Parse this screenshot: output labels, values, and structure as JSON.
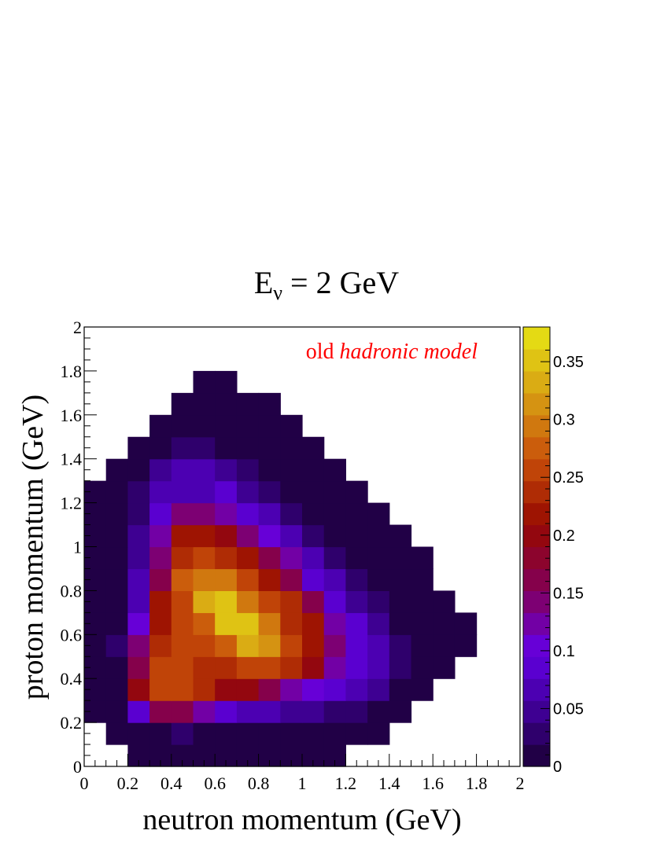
{
  "chart_data": {
    "type": "heatmap",
    "title": {
      "main": "E",
      "sub": "ν",
      "rest": " = 2 GeV"
    },
    "xlabel": "neutron momentum (GeV)",
    "ylabel": "proton momentum (GeV)",
    "annotation": {
      "plain": "old ",
      "italic": "hadronic model",
      "color": "#ff0000"
    },
    "xlim": [
      0,
      2
    ],
    "ylim": [
      0,
      2
    ],
    "bin_width": 0.1,
    "x_tick_labels": [
      "0",
      "0.2",
      "0.4",
      "0.6",
      "0.8",
      "1",
      "1.2",
      "1.4",
      "1.6",
      "1.8",
      "2"
    ],
    "y_tick_labels": [
      "0",
      "0.2",
      "0.4",
      "0.6",
      "0.8",
      "1",
      "1.2",
      "1.4",
      "1.6",
      "1.8",
      "2"
    ],
    "colorbar": {
      "range": [
        0,
        0.38
      ],
      "tick_labels": [
        "0",
        "0.05",
        "0.1",
        "0.15",
        "0.2",
        "0.25",
        "0.3",
        "0.35"
      ],
      "palette": "dark-purple-to-yellow"
    },
    "bins": [
      [
        0.2,
        0,
        0.005
      ],
      [
        0.3,
        0,
        0.005
      ],
      [
        0.4,
        0,
        0.005
      ],
      [
        0.5,
        0,
        0.005
      ],
      [
        0.6,
        0,
        0.005
      ],
      [
        0.7,
        0,
        0.005
      ],
      [
        0.8,
        0,
        0.005
      ],
      [
        0.9,
        0,
        0.005
      ],
      [
        1.0,
        0,
        0.005
      ],
      [
        1.1,
        0,
        0.005
      ],
      [
        0.1,
        0.1,
        0.005
      ],
      [
        0.2,
        0.1,
        0.005
      ],
      [
        0.3,
        0.1,
        0.005
      ],
      [
        0.4,
        0.1,
        0.03
      ],
      [
        0.5,
        0.1,
        0.005
      ],
      [
        0.6,
        0.1,
        0.005
      ],
      [
        0.7,
        0.1,
        0.005
      ],
      [
        0.8,
        0.1,
        0.005
      ],
      [
        0.9,
        0.1,
        0.005
      ],
      [
        1.0,
        0.1,
        0.005
      ],
      [
        1.1,
        0.1,
        0.005
      ],
      [
        1.2,
        0.1,
        0.005
      ],
      [
        1.3,
        0.1,
        0.005
      ],
      [
        0.0,
        0.2,
        0.005
      ],
      [
        0.1,
        0.2,
        0.005
      ],
      [
        0.2,
        0.2,
        0.085
      ],
      [
        0.3,
        0.2,
        0.16
      ],
      [
        0.4,
        0.2,
        0.16
      ],
      [
        0.5,
        0.2,
        0.12
      ],
      [
        0.6,
        0.2,
        0.08
      ],
      [
        0.7,
        0.2,
        0.06
      ],
      [
        0.8,
        0.2,
        0.06
      ],
      [
        0.9,
        0.2,
        0.05
      ],
      [
        1.0,
        0.2,
        0.05
      ],
      [
        1.1,
        0.2,
        0.03
      ],
      [
        1.2,
        0.2,
        0.03
      ],
      [
        1.3,
        0.2,
        0.005
      ],
      [
        1.4,
        0.2,
        0.005
      ],
      [
        0.0,
        0.3,
        0.005
      ],
      [
        0.1,
        0.3,
        0.005
      ],
      [
        0.2,
        0.3,
        0.19
      ],
      [
        0.3,
        0.3,
        0.26
      ],
      [
        0.4,
        0.3,
        0.26
      ],
      [
        0.5,
        0.3,
        0.23
      ],
      [
        0.6,
        0.3,
        0.2
      ],
      [
        0.7,
        0.3,
        0.2
      ],
      [
        0.8,
        0.3,
        0.16
      ],
      [
        0.9,
        0.3,
        0.13
      ],
      [
        1.0,
        0.3,
        0.11
      ],
      [
        1.1,
        0.3,
        0.085
      ],
      [
        1.2,
        0.3,
        0.07
      ],
      [
        1.3,
        0.3,
        0.05
      ],
      [
        1.4,
        0.3,
        0.005
      ],
      [
        1.5,
        0.3,
        0.005
      ],
      [
        0.0,
        0.4,
        0.005
      ],
      [
        0.1,
        0.4,
        0.005
      ],
      [
        0.2,
        0.4,
        0.17
      ],
      [
        0.3,
        0.4,
        0.26
      ],
      [
        0.4,
        0.4,
        0.26
      ],
      [
        0.5,
        0.4,
        0.24
      ],
      [
        0.6,
        0.4,
        0.24
      ],
      [
        0.7,
        0.4,
        0.26
      ],
      [
        0.8,
        0.4,
        0.26
      ],
      [
        0.9,
        0.4,
        0.23
      ],
      [
        1.0,
        0.4,
        0.2
      ],
      [
        1.1,
        0.4,
        0.13
      ],
      [
        1.2,
        0.4,
        0.08
      ],
      [
        1.3,
        0.4,
        0.06
      ],
      [
        1.4,
        0.4,
        0.02
      ],
      [
        1.5,
        0.4,
        0.005
      ],
      [
        1.6,
        0.4,
        0.005
      ],
      [
        0.0,
        0.5,
        0.005
      ],
      [
        0.1,
        0.5,
        0.02
      ],
      [
        0.2,
        0.5,
        0.14
      ],
      [
        0.3,
        0.5,
        0.24
      ],
      [
        0.4,
        0.5,
        0.25
      ],
      [
        0.5,
        0.5,
        0.25
      ],
      [
        0.6,
        0.5,
        0.28
      ],
      [
        0.7,
        0.5,
        0.34
      ],
      [
        0.8,
        0.5,
        0.31
      ],
      [
        0.9,
        0.5,
        0.25
      ],
      [
        1.0,
        0.5,
        0.21
      ],
      [
        1.1,
        0.5,
        0.14
      ],
      [
        1.2,
        0.5,
        0.08
      ],
      [
        1.3,
        0.5,
        0.07
      ],
      [
        1.4,
        0.5,
        0.02
      ],
      [
        1.5,
        0.5,
        0.005
      ],
      [
        1.6,
        0.5,
        0.005
      ],
      [
        1.7,
        0.5,
        0.005
      ],
      [
        0.0,
        0.6,
        0.005
      ],
      [
        0.1,
        0.6,
        0.005
      ],
      [
        0.2,
        0.6,
        0.1
      ],
      [
        0.3,
        0.6,
        0.22
      ],
      [
        0.4,
        0.6,
        0.25
      ],
      [
        0.5,
        0.6,
        0.28
      ],
      [
        0.6,
        0.6,
        0.35
      ],
      [
        0.7,
        0.6,
        0.35
      ],
      [
        0.8,
        0.6,
        0.29
      ],
      [
        0.9,
        0.6,
        0.24
      ],
      [
        1.0,
        0.6,
        0.21
      ],
      [
        1.1,
        0.6,
        0.12
      ],
      [
        1.2,
        0.6,
        0.09
      ],
      [
        1.3,
        0.6,
        0.05
      ],
      [
        1.4,
        0.6,
        0.005
      ],
      [
        1.5,
        0.6,
        0.005
      ],
      [
        1.6,
        0.6,
        0.005
      ],
      [
        1.7,
        0.6,
        0.005
      ],
      [
        0.0,
        0.7,
        0.005
      ],
      [
        0.1,
        0.7,
        0.005
      ],
      [
        0.2,
        0.7,
        0.07
      ],
      [
        0.3,
        0.7,
        0.21
      ],
      [
        0.4,
        0.7,
        0.26
      ],
      [
        0.5,
        0.7,
        0.34
      ],
      [
        0.6,
        0.7,
        0.35
      ],
      [
        0.7,
        0.7,
        0.3
      ],
      [
        0.8,
        0.7,
        0.26
      ],
      [
        0.9,
        0.7,
        0.23
      ],
      [
        1.0,
        0.7,
        0.16
      ],
      [
        1.1,
        0.7,
        0.08
      ],
      [
        1.2,
        0.7,
        0.04
      ],
      [
        1.3,
        0.7,
        0.03
      ],
      [
        1.4,
        0.7,
        0.005
      ],
      [
        1.5,
        0.7,
        0.005
      ],
      [
        1.6,
        0.7,
        0.005
      ],
      [
        0.0,
        0.8,
        0.005
      ],
      [
        0.1,
        0.8,
        0.005
      ],
      [
        0.2,
        0.8,
        0.06
      ],
      [
        0.3,
        0.8,
        0.16
      ],
      [
        0.4,
        0.8,
        0.27
      ],
      [
        0.5,
        0.8,
        0.3
      ],
      [
        0.6,
        0.8,
        0.29
      ],
      [
        0.7,
        0.8,
        0.25
      ],
      [
        0.8,
        0.8,
        0.22
      ],
      [
        0.9,
        0.8,
        0.17
      ],
      [
        1.0,
        0.8,
        0.09
      ],
      [
        1.1,
        0.8,
        0.07
      ],
      [
        1.2,
        0.8,
        0.02
      ],
      [
        1.3,
        0.8,
        0.005
      ],
      [
        1.4,
        0.8,
        0.005
      ],
      [
        1.5,
        0.8,
        0.005
      ],
      [
        0.0,
        0.9,
        0.005
      ],
      [
        0.1,
        0.9,
        0.005
      ],
      [
        0.2,
        0.9,
        0.05
      ],
      [
        0.3,
        0.9,
        0.14
      ],
      [
        0.4,
        0.9,
        0.24
      ],
      [
        0.5,
        0.9,
        0.26
      ],
      [
        0.6,
        0.9,
        0.24
      ],
      [
        0.7,
        0.9,
        0.21
      ],
      [
        0.8,
        0.9,
        0.16
      ],
      [
        0.9,
        0.9,
        0.12
      ],
      [
        1.0,
        0.9,
        0.07
      ],
      [
        1.1,
        0.9,
        0.03
      ],
      [
        1.2,
        0.9,
        0.005
      ],
      [
        1.3,
        0.9,
        0.005
      ],
      [
        1.4,
        0.9,
        0.005
      ],
      [
        1.5,
        0.9,
        0.005
      ],
      [
        0.0,
        1.0,
        0.005
      ],
      [
        0.1,
        1.0,
        0.005
      ],
      [
        0.2,
        1.0,
        0.04
      ],
      [
        0.3,
        1.0,
        0.12
      ],
      [
        0.4,
        1.0,
        0.21
      ],
      [
        0.5,
        1.0,
        0.21
      ],
      [
        0.6,
        1.0,
        0.2
      ],
      [
        0.7,
        1.0,
        0.15
      ],
      [
        0.8,
        1.0,
        0.1
      ],
      [
        0.9,
        1.0,
        0.07
      ],
      [
        1.0,
        1.0,
        0.03
      ],
      [
        1.1,
        1.0,
        0.005
      ],
      [
        1.2,
        1.0,
        0.005
      ],
      [
        1.3,
        1.0,
        0.005
      ],
      [
        1.4,
        1.0,
        0.005
      ],
      [
        0.0,
        1.1,
        0.005
      ],
      [
        0.1,
        1.1,
        0.005
      ],
      [
        0.2,
        1.1,
        0.03
      ],
      [
        0.3,
        1.1,
        0.08
      ],
      [
        0.4,
        1.1,
        0.14
      ],
      [
        0.5,
        1.1,
        0.14
      ],
      [
        0.6,
        1.1,
        0.12
      ],
      [
        0.7,
        1.1,
        0.09
      ],
      [
        0.8,
        1.1,
        0.07
      ],
      [
        0.9,
        1.1,
        0.03
      ],
      [
        1.0,
        1.1,
        0.005
      ],
      [
        1.1,
        1.1,
        0.005
      ],
      [
        1.2,
        1.1,
        0.005
      ],
      [
        1.3,
        1.1,
        0.005
      ],
      [
        0.0,
        1.2,
        0.005
      ],
      [
        0.1,
        1.2,
        0.005
      ],
      [
        0.2,
        1.2,
        0.02
      ],
      [
        0.3,
        1.2,
        0.06
      ],
      [
        0.4,
        1.2,
        0.07
      ],
      [
        0.5,
        1.2,
        0.07
      ],
      [
        0.6,
        1.2,
        0.08
      ],
      [
        0.7,
        1.2,
        0.05
      ],
      [
        0.8,
        1.2,
        0.03
      ],
      [
        0.9,
        1.2,
        0.005
      ],
      [
        1.0,
        1.2,
        0.005
      ],
      [
        1.1,
        1.2,
        0.005
      ],
      [
        1.2,
        1.2,
        0.005
      ],
      [
        0.1,
        1.3,
        0.005
      ],
      [
        0.2,
        1.3,
        0.005
      ],
      [
        0.3,
        1.3,
        0.05
      ],
      [
        0.4,
        1.3,
        0.06
      ],
      [
        0.5,
        1.3,
        0.06
      ],
      [
        0.6,
        1.3,
        0.04
      ],
      [
        0.7,
        1.3,
        0.02
      ],
      [
        0.8,
        1.3,
        0.005
      ],
      [
        0.9,
        1.3,
        0.005
      ],
      [
        1.0,
        1.3,
        0.005
      ],
      [
        1.1,
        1.3,
        0.005
      ],
      [
        0.2,
        1.4,
        0.005
      ],
      [
        0.3,
        1.4,
        0.005
      ],
      [
        0.4,
        1.4,
        0.03
      ],
      [
        0.5,
        1.4,
        0.03
      ],
      [
        0.6,
        1.4,
        0.005
      ],
      [
        0.7,
        1.4,
        0.005
      ],
      [
        0.8,
        1.4,
        0.005
      ],
      [
        0.9,
        1.4,
        0.005
      ],
      [
        1.0,
        1.4,
        0.005
      ],
      [
        0.3,
        1.5,
        0.005
      ],
      [
        0.4,
        1.5,
        0.005
      ],
      [
        0.5,
        1.5,
        0.005
      ],
      [
        0.6,
        1.5,
        0.005
      ],
      [
        0.7,
        1.5,
        0.005
      ],
      [
        0.8,
        1.5,
        0.005
      ],
      [
        0.9,
        1.5,
        0.005
      ],
      [
        0.4,
        1.6,
        0.005
      ],
      [
        0.5,
        1.6,
        0.005
      ],
      [
        0.6,
        1.6,
        0.005
      ],
      [
        0.7,
        1.6,
        0.005
      ],
      [
        0.8,
        1.6,
        0.005
      ],
      [
        0.5,
        1.7,
        0.005
      ],
      [
        0.6,
        1.7,
        0.005
      ]
    ]
  }
}
